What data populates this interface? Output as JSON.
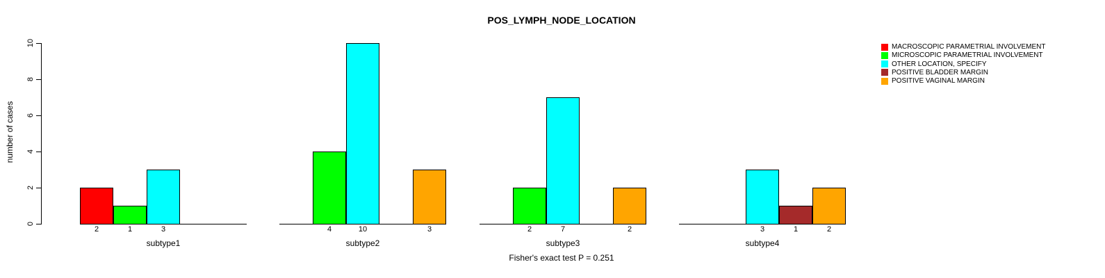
{
  "title": "POS_LYMPH_NODE_LOCATION",
  "subtitle": "Fisher's exact test P = 0.251",
  "ylabel": "number of cases",
  "chart_data": {
    "type": "bar",
    "grouped": true,
    "title": "POS_LYMPH_NODE_LOCATION",
    "xlabel": "",
    "ylabel": "number of cases",
    "annotation": "Fisher's exact test P = 0.251",
    "categories": [
      "subtype1",
      "subtype2",
      "subtype3",
      "subtype4"
    ],
    "series": [
      {
        "name": "MACROSCOPIC PARAMETRIAL INVOLVEMENT",
        "color": "#FF0000",
        "values": [
          2,
          0,
          0,
          0
        ]
      },
      {
        "name": "MICROSCOPIC PARAMETRIAL INVOLVEMENT",
        "color": "#00FF00",
        "values": [
          1,
          4,
          2,
          0
        ]
      },
      {
        "name": "OTHER LOCATION, SPECIFY",
        "color": "#00FFFF",
        "values": [
          3,
          10,
          7,
          3
        ]
      },
      {
        "name": "POSITIVE BLADDER MARGIN",
        "color": "#A52A2A",
        "values": [
          0,
          0,
          0,
          1
        ]
      },
      {
        "name": "POSITIVE VAGINAL MARGIN",
        "color": "#FFA500",
        "values": [
          0,
          3,
          2,
          2
        ]
      }
    ],
    "bar_value_labels": {
      "subtype1": [
        2,
        1,
        3
      ],
      "subtype2": [
        4,
        10,
        3
      ],
      "subtype3": [
        2,
        7,
        2
      ],
      "subtype4": [
        3,
        1,
        2
      ],
      "note": "only non-zero bars are labeled beneath the axis"
    },
    "yticks": [
      0,
      2,
      4,
      6,
      8,
      10
    ],
    "ylim": [
      0,
      10
    ],
    "grid": false,
    "legend_position": "right"
  }
}
